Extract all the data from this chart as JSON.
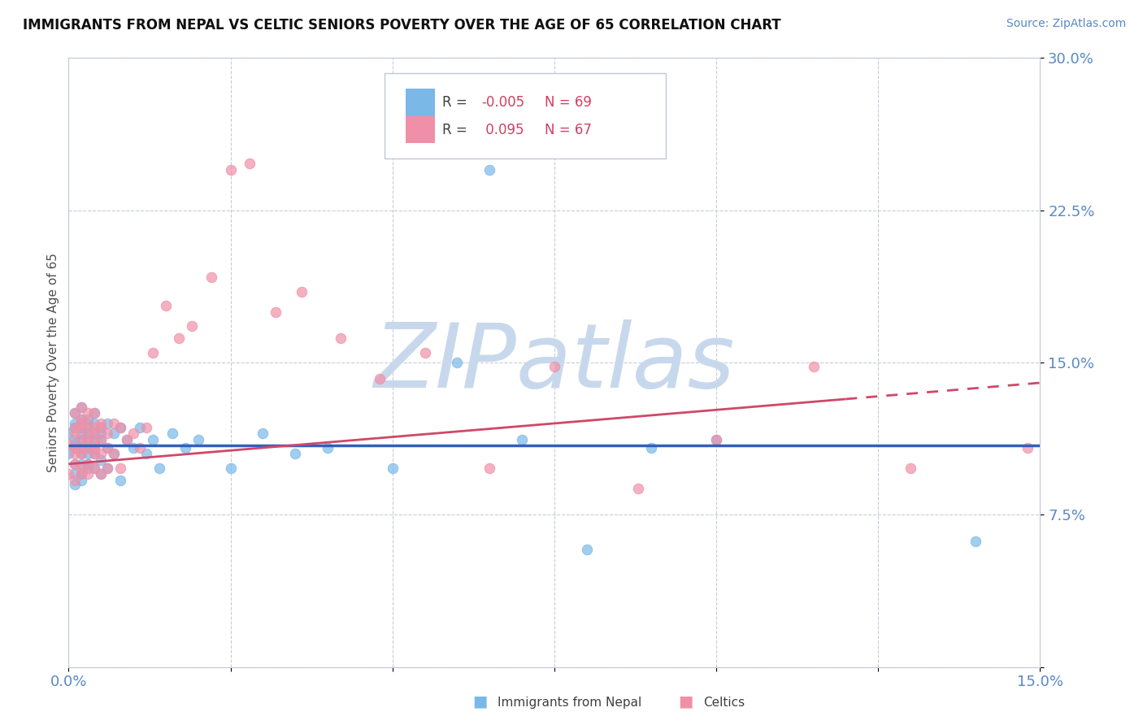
{
  "title": "IMMIGRANTS FROM NEPAL VS CELTIC SENIORS POVERTY OVER THE AGE OF 65 CORRELATION CHART",
  "source": "Source: ZipAtlas.com",
  "ylabel": "Seniors Poverty Over the Age of 65",
  "xlim": [
    0.0,
    0.15
  ],
  "ylim": [
    0.0,
    0.3
  ],
  "xticks": [
    0.0,
    0.025,
    0.05,
    0.075,
    0.1,
    0.125,
    0.15
  ],
  "xticklabels": [
    "0.0%",
    "",
    "",
    "",
    "",
    "",
    "15.0%"
  ],
  "yticks": [
    0.0,
    0.075,
    0.15,
    0.225,
    0.3
  ],
  "yticklabels": [
    "",
    "7.5%",
    "15.0%",
    "22.5%",
    "30.0%"
  ],
  "legend_r1": "R = -0.005",
  "legend_n1": "N = 69",
  "legend_r2": "R =  0.095",
  "legend_n2": "N = 67",
  "series1_color": "#7ab8e8",
  "series2_color": "#f090a8",
  "trendline1_color": "#3060c0",
  "trendline2_color": "#d04868",
  "watermark": "ZIPatlas",
  "watermark_color": "#c8d8ec",
  "background_color": "#ffffff",
  "grid_color": "#c8ccd8",
  "tick_color": "#5888c8",
  "nepal_x": [
    0.0,
    0.0,
    0.001,
    0.001,
    0.001,
    0.001,
    0.001,
    0.001,
    0.001,
    0.001,
    0.001,
    0.002,
    0.002,
    0.002,
    0.002,
    0.002,
    0.002,
    0.002,
    0.002,
    0.002,
    0.002,
    0.003,
    0.003,
    0.003,
    0.003,
    0.003,
    0.003,
    0.003,
    0.003,
    0.004,
    0.004,
    0.004,
    0.004,
    0.004,
    0.004,
    0.004,
    0.005,
    0.005,
    0.005,
    0.005,
    0.005,
    0.006,
    0.006,
    0.006,
    0.007,
    0.007,
    0.008,
    0.008,
    0.009,
    0.01,
    0.011,
    0.012,
    0.013,
    0.014,
    0.016,
    0.018,
    0.02,
    0.025,
    0.03,
    0.035,
    0.04,
    0.05,
    0.06,
    0.065,
    0.07,
    0.08,
    0.09,
    0.1,
    0.14
  ],
  "nepal_y": [
    0.105,
    0.115,
    0.118,
    0.112,
    0.108,
    0.1,
    0.12,
    0.095,
    0.125,
    0.11,
    0.09,
    0.115,
    0.122,
    0.1,
    0.108,
    0.118,
    0.095,
    0.112,
    0.128,
    0.105,
    0.092,
    0.118,
    0.112,
    0.105,
    0.098,
    0.122,
    0.108,
    0.115,
    0.1,
    0.12,
    0.112,
    0.105,
    0.115,
    0.098,
    0.108,
    0.125,
    0.112,
    0.118,
    0.102,
    0.095,
    0.115,
    0.12,
    0.108,
    0.098,
    0.115,
    0.105,
    0.118,
    0.092,
    0.112,
    0.108,
    0.118,
    0.105,
    0.112,
    0.098,
    0.115,
    0.108,
    0.112,
    0.098,
    0.115,
    0.105,
    0.108,
    0.098,
    0.15,
    0.245,
    0.112,
    0.058,
    0.108,
    0.112,
    0.062
  ],
  "celtics_x": [
    0.0,
    0.0,
    0.001,
    0.001,
    0.001,
    0.001,
    0.001,
    0.001,
    0.001,
    0.002,
    0.002,
    0.002,
    0.002,
    0.002,
    0.002,
    0.002,
    0.002,
    0.002,
    0.003,
    0.003,
    0.003,
    0.003,
    0.003,
    0.003,
    0.003,
    0.004,
    0.004,
    0.004,
    0.004,
    0.004,
    0.004,
    0.004,
    0.005,
    0.005,
    0.005,
    0.005,
    0.005,
    0.006,
    0.006,
    0.006,
    0.007,
    0.007,
    0.008,
    0.008,
    0.009,
    0.01,
    0.011,
    0.012,
    0.013,
    0.015,
    0.017,
    0.019,
    0.022,
    0.025,
    0.028,
    0.032,
    0.036,
    0.042,
    0.048,
    0.055,
    0.065,
    0.075,
    0.088,
    0.1,
    0.115,
    0.13,
    0.148
  ],
  "celtics_y": [
    0.11,
    0.095,
    0.118,
    0.105,
    0.125,
    0.1,
    0.115,
    0.092,
    0.108,
    0.12,
    0.112,
    0.098,
    0.128,
    0.105,
    0.118,
    0.095,
    0.108,
    0.122,
    0.115,
    0.108,
    0.1,
    0.12,
    0.112,
    0.095,
    0.125,
    0.118,
    0.11,
    0.105,
    0.098,
    0.115,
    0.125,
    0.108,
    0.118,
    0.105,
    0.112,
    0.095,
    0.12,
    0.115,
    0.108,
    0.098,
    0.12,
    0.105,
    0.118,
    0.098,
    0.112,
    0.115,
    0.108,
    0.118,
    0.155,
    0.178,
    0.162,
    0.168,
    0.192,
    0.245,
    0.248,
    0.175,
    0.185,
    0.162,
    0.142,
    0.155,
    0.098,
    0.148,
    0.088,
    0.112,
    0.148,
    0.098,
    0.108
  ]
}
